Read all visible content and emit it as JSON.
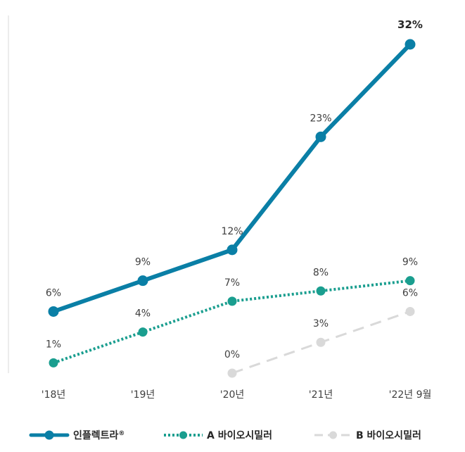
{
  "chart_data": {
    "type": "line",
    "categories": [
      "'18년",
      "'19년",
      "'20년",
      "'21년",
      "'22년 9월"
    ],
    "ylim": [
      0,
      35
    ],
    "grid": false,
    "legend_position": "bottom",
    "series": [
      {
        "name": "인플렉트라",
        "name_mark": "®",
        "values": [
          6,
          9,
          12,
          23,
          32
        ],
        "labels": [
          "6%",
          "9%",
          "12%",
          "23%",
          "32%"
        ],
        "color": "#0a7fa6",
        "style": "solid"
      },
      {
        "name": "A 바이오시밀러",
        "values": [
          1,
          4,
          7,
          8,
          9
        ],
        "labels": [
          "1%",
          "4%",
          "7%",
          "8%",
          "9%"
        ],
        "color": "#1a9e8f",
        "style": "dotted"
      },
      {
        "name": "B 바이오시밀러",
        "values": [
          null,
          null,
          0,
          3,
          6
        ],
        "labels": [
          null,
          null,
          "0%",
          "3%",
          "6%"
        ],
        "color": "#d9d9d9",
        "style": "dashed"
      }
    ]
  }
}
